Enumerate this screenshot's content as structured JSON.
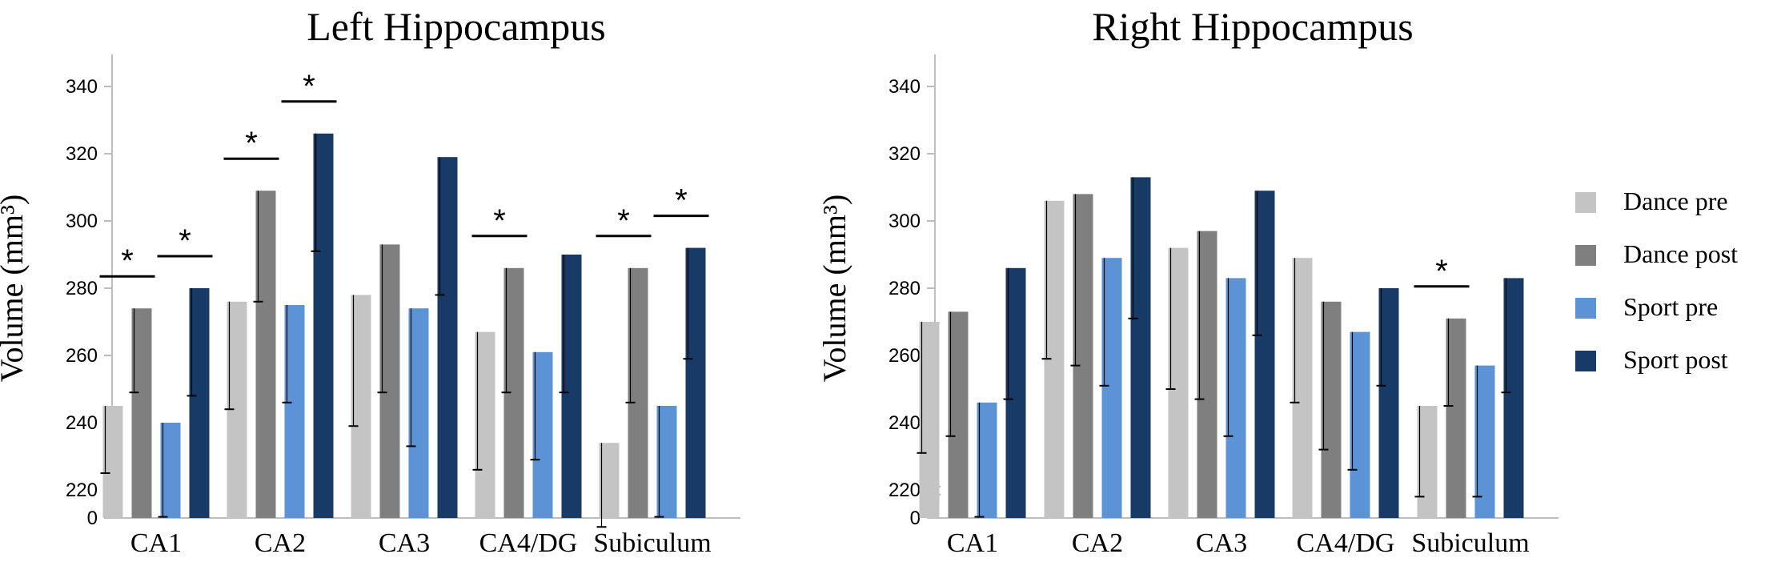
{
  "legend": [
    {
      "name": "Dance pre",
      "color": "#c4c4c4"
    },
    {
      "name": "Dance post",
      "color": "#7f7f7f"
    },
    {
      "name": "Sport pre",
      "color": "#5b93d6"
    },
    {
      "name": "Sport post",
      "color": "#173a66"
    }
  ],
  "chart_data": [
    {
      "type": "bar",
      "title": "Left Hippocampus",
      "ylabel": "Volume (mm³)",
      "ylim": [
        200,
        350
      ],
      "yticks": [
        0,
        220,
        240,
        260,
        280,
        300,
        320,
        340
      ],
      "axis_break": true,
      "categories": [
        "CA1",
        "CA2",
        "CA3",
        "CA4/DG",
        "Subiculum"
      ],
      "series": [
        {
          "name": "Dance pre",
          "values": [
            245,
            276,
            278,
            267,
            234
          ],
          "error_lower": [
            225,
            244,
            239,
            226,
            209
          ]
        },
        {
          "name": "Dance post",
          "values": [
            274,
            309,
            293,
            286,
            286
          ],
          "error_lower": [
            249,
            276,
            249,
            249,
            246
          ]
        },
        {
          "name": "Sport pre",
          "values": [
            240,
            275,
            274,
            261,
            245
          ],
          "error_lower": [
            212,
            246,
            233,
            229,
            212
          ]
        },
        {
          "name": "Sport post",
          "values": [
            280,
            326,
            319,
            290,
            292
          ],
          "error_lower": [
            248,
            291,
            278,
            249,
            259
          ]
        }
      ],
      "significance": [
        {
          "category": "CA1",
          "pair": "Dance",
          "marker": "*"
        },
        {
          "category": "CA1",
          "pair": "Sport",
          "marker": "*"
        },
        {
          "category": "CA2",
          "pair": "Dance",
          "marker": "*"
        },
        {
          "category": "CA2",
          "pair": "Sport",
          "marker": "*"
        },
        {
          "category": "CA4/DG",
          "pair": "Dance",
          "marker": "*"
        },
        {
          "category": "Subiculum",
          "pair": "Dance",
          "marker": "*"
        },
        {
          "category": "Subiculum",
          "pair": "Sport",
          "marker": "*"
        }
      ]
    },
    {
      "type": "bar",
      "title": "Right Hippocampus",
      "ylabel": "Volume (mm³)",
      "ylim": [
        200,
        350
      ],
      "yticks": [
        0,
        220,
        240,
        260,
        280,
        300,
        320,
        340
      ],
      "axis_break": true,
      "categories": [
        "CA1",
        "CA2",
        "CA3",
        "CA4/DG",
        "Subiculum"
      ],
      "series": [
        {
          "name": "Dance pre",
          "values": [
            270,
            306,
            292,
            289,
            245
          ],
          "error_lower": [
            231,
            259,
            250,
            246,
            218
          ]
        },
        {
          "name": "Dance post",
          "values": [
            273,
            308,
            297,
            276,
            271
          ],
          "error_lower": [
            236,
            257,
            247,
            232,
            245
          ]
        },
        {
          "name": "Sport pre",
          "values": [
            246,
            289,
            283,
            267,
            257
          ],
          "error_lower": [
            212,
            251,
            236,
            226,
            218
          ]
        },
        {
          "name": "Sport post",
          "values": [
            286,
            313,
            309,
            280,
            283
          ],
          "error_lower": [
            247,
            271,
            266,
            251,
            249
          ]
        }
      ],
      "significance": [
        {
          "category": "Subiculum",
          "pair": "Dance",
          "marker": "*"
        }
      ]
    }
  ]
}
